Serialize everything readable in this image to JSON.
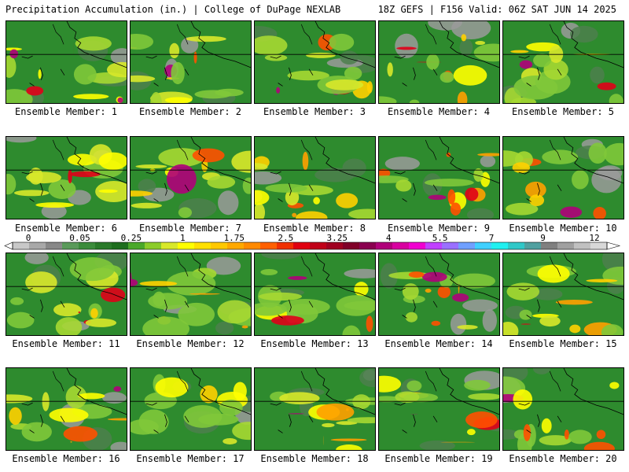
{
  "header": {
    "left_title": "Precipitation Accumulation (in.) | College of DuPage NEXLAB",
    "right_title": "18Z GEFS | F156 Valid: 06Z SAT JUN 14 2025"
  },
  "panels": [
    {
      "label": "Ensemble Member: 1"
    },
    {
      "label": "Ensemble Member: 2"
    },
    {
      "label": "Ensemble Member: 3"
    },
    {
      "label": "Ensemble Member: 4"
    },
    {
      "label": "Ensemble Member: 5"
    },
    {
      "label": "Ensemble Member: 6"
    },
    {
      "label": "Ensemble Member: 7"
    },
    {
      "label": "Ensemble Member: 8"
    },
    {
      "label": "Ensemble Member: 9"
    },
    {
      "label": "Ensemble Member: 10"
    },
    {
      "label": "Ensemble Member: 11"
    },
    {
      "label": "Ensemble Member: 12"
    },
    {
      "label": "Ensemble Member: 13"
    },
    {
      "label": "Ensemble Member: 14"
    },
    {
      "label": "Ensemble Member: 15"
    },
    {
      "label": "Ensemble Member: 16"
    },
    {
      "label": "Ensemble Member: 17"
    },
    {
      "label": "Ensemble Member: 18"
    },
    {
      "label": "Ensemble Member: 19"
    },
    {
      "label": "Ensemble Member: 20"
    }
  ],
  "colorbar": {
    "tick_labels": [
      "0",
      "0.05",
      "0.25",
      "1",
      "1.75",
      "2.5",
      "3.25",
      "4",
      "5.5",
      "7",
      "9",
      "12"
    ],
    "bin_colors": [
      "#c8c8c8",
      "#a8a8a8",
      "#888888",
      "#5a9a5a",
      "#3c8c3c",
      "#2a7a2a",
      "#1e6e1e",
      "#4aa82a",
      "#8ccc2a",
      "#d8e82a",
      "#ffff00",
      "#ffe000",
      "#ffc800",
      "#ffa800",
      "#ff8a00",
      "#ff6000",
      "#f03000",
      "#e00010",
      "#c00018",
      "#a00020",
      "#800028",
      "#8a0050",
      "#b0007a",
      "#d800a0",
      "#f000d0",
      "#c040ff",
      "#9a70ff",
      "#70a0ff",
      "#40d0ff",
      "#20f0f0",
      "#30c8c8",
      "#50a0a0",
      "#808080",
      "#a0a0a0",
      "#c0c0c0",
      "#d8d8d8"
    ]
  }
}
